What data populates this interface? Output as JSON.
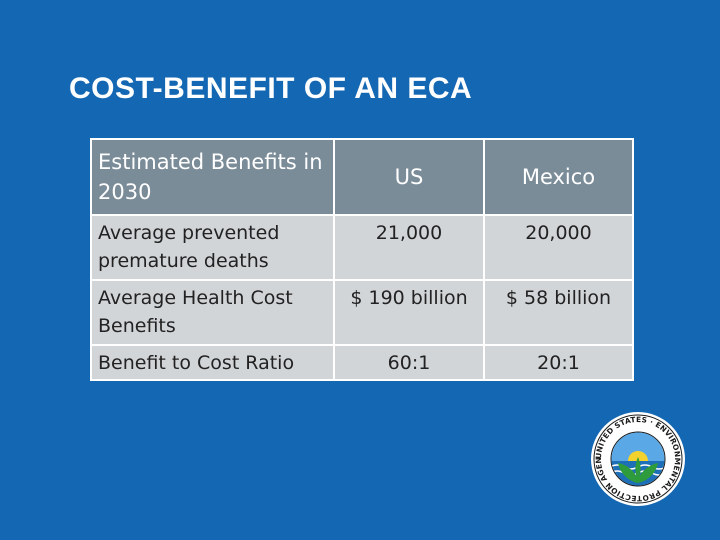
{
  "slide": {
    "title": "COST-BENEFIT OF AN ECA"
  },
  "table": {
    "headers": [
      "Estimated Benefits in 2030",
      "US",
      "Mexico"
    ],
    "rows": [
      [
        "Average prevented premature deaths",
        "21,000",
        "20,000"
      ],
      [
        "Average Health Cost Benefits",
        "$ 190 billion",
        "$ 58 billion"
      ],
      [
        "Benefit to Cost Ratio",
        "60:1",
        "20:1"
      ]
    ]
  },
  "logo": {
    "name": "epa-seal-icon",
    "text": "UNITED STATES ENVIRONMENTAL PROTECTION AGENCY"
  },
  "colors": {
    "background": "#1467b3",
    "header_row": "#7b8c99",
    "body_rows": "#d2d5d8",
    "seal_green": "#2e9b3d"
  }
}
